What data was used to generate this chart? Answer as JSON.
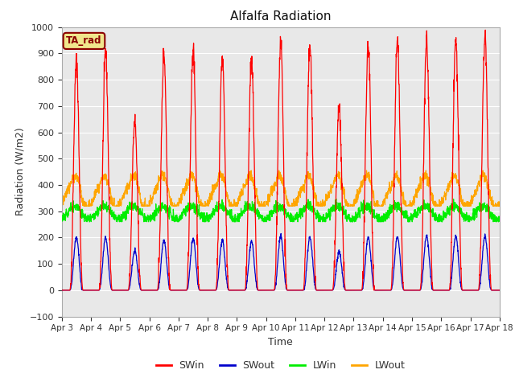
{
  "title": "Alfalfa Radiation",
  "xlabel": "Time",
  "ylabel": "Radiation (W/m2)",
  "ylim": [
    -100,
    1000
  ],
  "tag_label": "TA_rad",
  "x_tick_labels": [
    "Apr 3",
    "Apr 4",
    "Apr 5",
    "Apr 6",
    "Apr 7",
    "Apr 8",
    "Apr 9",
    "Apr 10",
    "Apr 11",
    "Apr 12",
    "Apr 13",
    "Apr 14",
    "Apr 15",
    "Apr 16",
    "Apr 17",
    "Apr 18"
  ],
  "legend_entries": [
    "SWin",
    "SWout",
    "LWin",
    "LWout"
  ],
  "colors": {
    "SWin": "#ff0000",
    "SWout": "#0000cc",
    "LWin": "#00ee00",
    "LWout": "#ffa500"
  },
  "bg_color": "#e8e8e8",
  "fig_bg": "#ffffff",
  "grid_color": "#ffffff",
  "day_peaks_SWin": [
    870,
    905,
    640,
    900,
    915,
    885,
    880,
    940,
    925,
    700,
    930,
    945,
    950,
    950,
    970
  ],
  "day_peaks_SWout": [
    200,
    200,
    150,
    190,
    195,
    190,
    185,
    205,
    200,
    145,
    200,
    205,
    205,
    205,
    205
  ],
  "LWout_base": 360,
  "LWout_amp": 45,
  "LWin_base": 295,
  "LWin_amp": 25,
  "n_days": 15,
  "seed": 42
}
